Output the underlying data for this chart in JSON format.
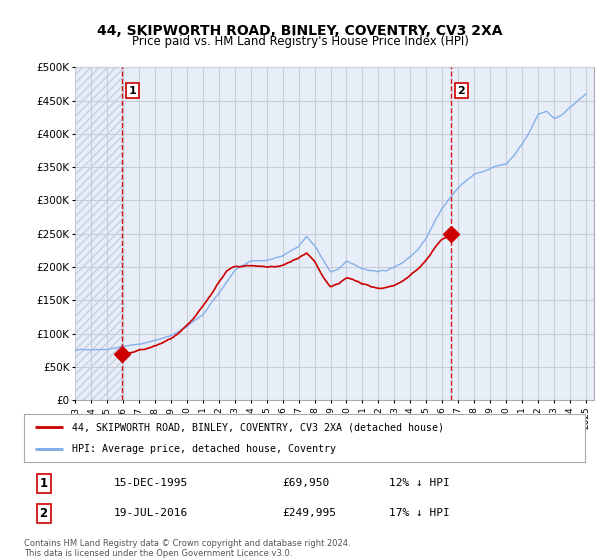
{
  "title": "44, SKIPWORTH ROAD, BINLEY, COVENTRY, CV3 2XA",
  "subtitle": "Price paid vs. HM Land Registry's House Price Index (HPI)",
  "legend_line1": "44, SKIPWORTH ROAD, BINLEY, COVENTRY, CV3 2XA (detached house)",
  "legend_line2": "HPI: Average price, detached house, Coventry",
  "transaction1_label": "1",
  "transaction1_date": "15-DEC-1995",
  "transaction1_price": "£69,950",
  "transaction1_hpi": "12% ↓ HPI",
  "transaction2_label": "2",
  "transaction2_date": "19-JUL-2016",
  "transaction2_price": "£249,995",
  "transaction2_hpi": "17% ↓ HPI",
  "copyright": "Contains HM Land Registry data © Crown copyright and database right 2024.\nThis data is licensed under the Open Government Licence v3.0.",
  "ylim": [
    0,
    500000
  ],
  "yticks": [
    0,
    50000,
    100000,
    150000,
    200000,
    250000,
    300000,
    350000,
    400000,
    450000,
    500000
  ],
  "ytick_labels": [
    "£0",
    "£50K",
    "£100K",
    "£150K",
    "£200K",
    "£250K",
    "£300K",
    "£350K",
    "£400K",
    "£450K",
    "£500K"
  ],
  "hpi_color": "#7aaae8",
  "price_color": "#cc0000",
  "vline_color": "#cc0000",
  "chart_bg": "#e8eef8",
  "hatch_color": "#c8d0dc",
  "grid_color": "#c8cdd8",
  "background_color": "#ffffff",
  "transaction1_x": 1995.96,
  "transaction2_x": 2016.55,
  "transaction1_y": 69950,
  "transaction2_y": 249995,
  "xlim_start": 1993,
  "xlim_end": 2025.5,
  "hpi_anchors_x": [
    1993,
    1994,
    1995,
    1996,
    1997,
    1998,
    1999,
    2000,
    2001,
    2002,
    2003,
    2004,
    2005,
    2006,
    2007,
    2007.5,
    2008,
    2008.5,
    2009,
    2009.5,
    2010,
    2010.5,
    2011,
    2011.5,
    2012,
    2012.5,
    2013,
    2013.5,
    2014,
    2014.5,
    2015,
    2015.5,
    2016,
    2016.5,
    2017,
    2017.5,
    2018,
    2018.5,
    2019,
    2019.5,
    2020,
    2020.5,
    2021,
    2021.5,
    2022,
    2022.5,
    2023,
    2023.5,
    2024,
    2024.5,
    2025
  ],
  "hpi_anchors_y": [
    75000,
    77000,
    79000,
    83000,
    87000,
    92000,
    100000,
    112000,
    130000,
    160000,
    195000,
    210000,
    210000,
    215000,
    230000,
    245000,
    230000,
    210000,
    190000,
    195000,
    205000,
    200000,
    195000,
    193000,
    192000,
    193000,
    198000,
    205000,
    215000,
    228000,
    245000,
    268000,
    290000,
    305000,
    320000,
    330000,
    338000,
    342000,
    348000,
    352000,
    355000,
    368000,
    385000,
    405000,
    430000,
    435000,
    425000,
    430000,
    440000,
    450000,
    460000
  ],
  "price_anchors_x": [
    1995.96,
    1996.5,
    1997,
    1997.5,
    1998,
    1998.5,
    1999,
    1999.5,
    2000,
    2000.5,
    2001,
    2001.5,
    2002,
    2002.5,
    2003,
    2003.5,
    2004,
    2004.5,
    2005,
    2005.5,
    2006,
    2006.5,
    2007,
    2007.5,
    2008,
    2008.5,
    2009,
    2009.5,
    2010,
    2010.5,
    2011,
    2011.5,
    2012,
    2012.5,
    2013,
    2013.5,
    2014,
    2014.5,
    2015,
    2015.5,
    2016,
    2016.55
  ],
  "price_anchors_y": [
    69950,
    72000,
    75000,
    78000,
    82000,
    87000,
    93000,
    100000,
    110000,
    122000,
    138000,
    155000,
    175000,
    192000,
    198000,
    200000,
    202000,
    200000,
    198000,
    198000,
    200000,
    205000,
    212000,
    220000,
    207000,
    185000,
    168000,
    172000,
    180000,
    178000,
    172000,
    168000,
    166000,
    168000,
    172000,
    178000,
    186000,
    197000,
    210000,
    228000,
    242000,
    249995
  ]
}
